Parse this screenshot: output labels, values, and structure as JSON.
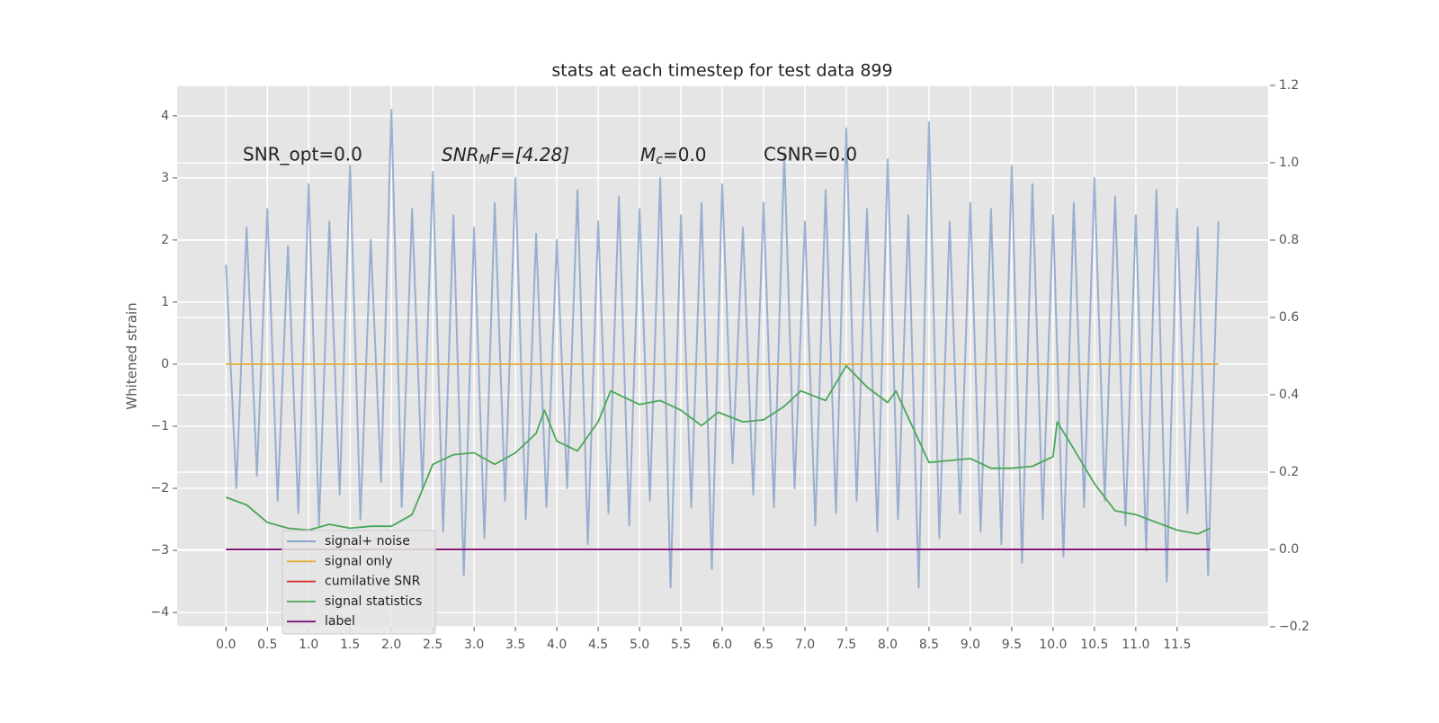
{
  "chart_data": {
    "type": "line",
    "title": "stats at each timestep for test data 899",
    "ylabel": "Whitened strain",
    "grid": true,
    "legend_position": "lower left",
    "annotations": [
      {
        "text": "SNR_opt=0.0"
      },
      {
        "base": "SNR",
        "sub": "M",
        "rest": "F=[4.28]"
      },
      {
        "base": "M",
        "sub": "c",
        "rest": "=0.0"
      },
      {
        "text": "CSNR=0.0"
      }
    ],
    "xlim": [
      -0.59,
      12.6
    ],
    "xticks": [
      {
        "value": 0,
        "label": "0.0"
      },
      {
        "value": 0.5,
        "label": "0.5"
      },
      {
        "value": 1,
        "label": "1.0"
      },
      {
        "value": 1.5,
        "label": "1.5"
      },
      {
        "value": 2,
        "label": "2.0"
      },
      {
        "value": 2.5,
        "label": "2.5"
      },
      {
        "value": 3,
        "label": "3.0"
      },
      {
        "value": 3.5,
        "label": "3.5"
      },
      {
        "value": 4,
        "label": "4.0"
      },
      {
        "value": 4.5,
        "label": "4.5"
      },
      {
        "value": 5,
        "label": "5.0"
      },
      {
        "value": 5.5,
        "label": "5.5"
      },
      {
        "value": 6,
        "label": "6.0"
      },
      {
        "value": 6.5,
        "label": "6.5"
      },
      {
        "value": 7,
        "label": "7.0"
      },
      {
        "value": 7.5,
        "label": "7.5"
      },
      {
        "value": 8,
        "label": "8.0"
      },
      {
        "value": 8.5,
        "label": "8.5"
      },
      {
        "value": 9,
        "label": "9.0"
      },
      {
        "value": 9.5,
        "label": "9.5"
      },
      {
        "value": 10,
        "label": "10.0"
      },
      {
        "value": 10.5,
        "label": "10.5"
      },
      {
        "value": 11,
        "label": "11.0"
      },
      {
        "value": 11.5,
        "label": "11.5"
      }
    ],
    "ylim": [
      -4.23,
      4.49
    ],
    "yticks": [
      {
        "value": -4,
        "label": "−4"
      },
      {
        "value": -3,
        "label": "−3"
      },
      {
        "value": -2,
        "label": "−2"
      },
      {
        "value": -1,
        "label": "−1"
      },
      0,
      1,
      2,
      3,
      4
    ],
    "y2lim": [
      -0.2,
      1.2
    ],
    "y2ticks": [
      {
        "value": -0.2,
        "label": "−0.2"
      },
      {
        "value": 0,
        "label": "0.0"
      },
      {
        "value": 0.2,
        "label": "0.2"
      },
      {
        "value": 0.4,
        "label": "0.4"
      },
      {
        "value": 0.6,
        "label": "0.6"
      },
      {
        "value": 0.8,
        "label": "0.8"
      },
      {
        "value": 1.0,
        "label": "1.0"
      },
      {
        "value": 1.2,
        "label": "1.2"
      }
    ],
    "series": [
      {
        "name": "signal+ noise",
        "color": "#7e9bc8",
        "x": [
          0,
          0.125,
          0.25,
          0.375,
          0.5,
          0.625,
          0.75,
          0.875,
          1,
          1.125,
          1.25,
          1.375,
          1.5,
          1.625,
          1.75,
          1.875,
          2,
          2.125,
          2.25,
          2.375,
          2.5,
          2.625,
          2.75,
          2.875,
          3,
          3.125,
          3.25,
          3.375,
          3.5,
          3.625,
          3.75,
          3.875,
          4,
          4.125,
          4.25,
          4.375,
          4.5,
          4.625,
          4.75,
          4.875,
          5,
          5.125,
          5.25,
          5.375,
          5.5,
          5.625,
          5.75,
          5.875,
          6,
          6.125,
          6.25,
          6.375,
          6.5,
          6.625,
          6.75,
          6.875,
          7,
          7.125,
          7.25,
          7.375,
          7.5,
          7.625,
          7.75,
          7.875,
          8,
          8.125,
          8.25,
          8.375,
          8.5,
          8.625,
          8.75,
          8.875,
          9,
          9.125,
          9.25,
          9.375,
          9.5,
          9.625,
          9.75,
          9.875,
          10,
          10.125,
          10.25,
          10.375,
          10.5,
          10.625,
          10.75,
          10.875,
          11,
          11.125,
          11.25,
          11.375,
          11.5,
          11.625,
          11.75,
          11.875,
          12
        ],
        "values": [
          1.6,
          -2.0,
          2.2,
          -1.8,
          2.5,
          -2.2,
          1.9,
          -2.4,
          2.9,
          -2.6,
          2.3,
          -2.1,
          3.2,
          -2.5,
          2.0,
          -1.9,
          4.1,
          -2.3,
          2.5,
          -2.0,
          3.1,
          -2.7,
          2.4,
          -3.4,
          2.2,
          -2.8,
          2.6,
          -2.2,
          3.0,
          -2.5,
          2.1,
          -2.3,
          2.0,
          -2.0,
          2.8,
          -2.9,
          2.3,
          -2.4,
          2.7,
          -2.6,
          2.5,
          -2.2,
          3.0,
          -3.6,
          2.4,
          -2.3,
          2.6,
          -3.3,
          2.9,
          -1.6,
          2.2,
          -2.1,
          2.6,
          -2.3,
          3.4,
          -2.0,
          2.3,
          -2.6,
          2.8,
          -2.4,
          3.8,
          -2.2,
          2.5,
          -2.7,
          3.3,
          -2.5,
          2.4,
          -3.6,
          3.9,
          -2.8,
          2.3,
          -2.4,
          2.6,
          -2.7,
          2.5,
          -2.9,
          3.2,
          -3.2,
          2.9,
          -2.5,
          2.4,
          -3.1,
          2.6,
          -2.3,
          3.0,
          -2.2,
          2.7,
          -2.6,
          2.4,
          -3.0,
          2.8,
          -3.5,
          2.5,
          -2.4,
          2.2,
          -3.4,
          2.3
        ]
      },
      {
        "name": "signal only",
        "color": "#e5ae38",
        "x": [
          0,
          12
        ],
        "values": [
          0,
          0
        ]
      },
      {
        "name": "cumilative SNR",
        "color": "#d62728",
        "axis": "y2",
        "x": [
          0,
          11.9
        ],
        "values": [
          0,
          0
        ]
      },
      {
        "name": "signal statistics",
        "color": "#4aa757",
        "axis": "y2",
        "x": [
          0,
          0.25,
          0.5,
          0.75,
          1.0,
          1.25,
          1.5,
          1.75,
          2.0,
          2.25,
          2.5,
          2.75,
          3.0,
          3.25,
          3.5,
          3.75,
          3.85,
          4.0,
          4.25,
          4.5,
          4.65,
          4.75,
          5.0,
          5.25,
          5.5,
          5.75,
          5.95,
          6.25,
          6.5,
          6.75,
          6.95,
          7.25,
          7.5,
          7.75,
          8.0,
          8.1,
          8.5,
          8.75,
          9.0,
          9.25,
          9.5,
          9.75,
          10.0,
          10.05,
          10.25,
          10.5,
          10.75,
          11.0,
          11.5,
          11.75,
          11.9
        ],
        "values": [
          0.135,
          0.115,
          0.07,
          0.055,
          0.05,
          0.065,
          0.055,
          0.06,
          0.06,
          0.09,
          0.22,
          0.245,
          0.25,
          0.22,
          0.25,
          0.3,
          0.36,
          0.28,
          0.255,
          0.33,
          0.41,
          0.4,
          0.375,
          0.385,
          0.36,
          0.32,
          0.355,
          0.33,
          0.335,
          0.37,
          0.41,
          0.385,
          0.475,
          0.42,
          0.38,
          0.41,
          0.225,
          0.23,
          0.235,
          0.21,
          0.21,
          0.215,
          0.24,
          0.33,
          0.26,
          0.17,
          0.1,
          0.09,
          0.05,
          0.04,
          0.055
        ]
      },
      {
        "name": "label",
        "color": "#7a0f7a",
        "axis": "y2",
        "x": [
          0,
          11.9
        ],
        "values": [
          0,
          0
        ]
      }
    ]
  }
}
